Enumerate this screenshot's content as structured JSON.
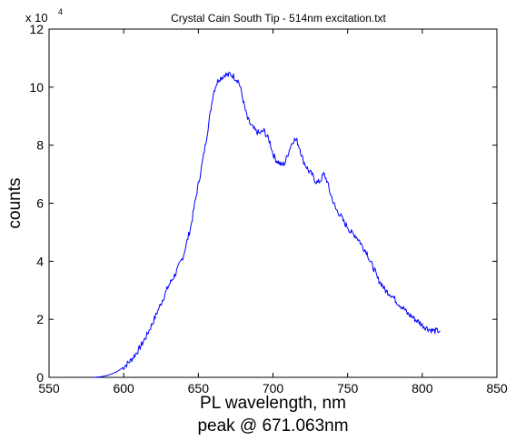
{
  "chart_data": {
    "type": "line",
    "title": "Crystal Cain South Tip - 514nm excitation.txt",
    "xlabel": "PL wavelength, nm",
    "xlabel_line2": "peak @ 671.063nm",
    "ylabel": "counts",
    "y_multiplier": {
      "base": "x 10",
      "exponent": "4"
    },
    "xlim": [
      550,
      850
    ],
    "ylim": [
      0,
      12
    ],
    "y_scale_factor": 10000,
    "xticks": [
      550,
      600,
      650,
      700,
      750,
      800,
      850
    ],
    "yticks": [
      0,
      2,
      4,
      6,
      8,
      10,
      12
    ],
    "grid": false,
    "line_color": "#0000ff",
    "series": [
      {
        "x": [
          580,
          585,
          590,
          595,
          600,
          605,
          610,
          615,
          620,
          625,
          630,
          635,
          640,
          645,
          648,
          652,
          655,
          658,
          660,
          662,
          664,
          666,
          668,
          670,
          671,
          673,
          675,
          677,
          679,
          681,
          683,
          685,
          688,
          691,
          694,
          696,
          698,
          700,
          702,
          704,
          706,
          708,
          710,
          712,
          714,
          716,
          718,
          720,
          722,
          724,
          726,
          728,
          730,
          732,
          734,
          736,
          738,
          740,
          742,
          745,
          748,
          750,
          752,
          755,
          758,
          760,
          763,
          765,
          768,
          770,
          773,
          775,
          778,
          780,
          783,
          785,
          788,
          790,
          793,
          795,
          798,
          800,
          803,
          805,
          808,
          810,
          812
        ],
        "y": [
          0.0,
          0.02,
          0.08,
          0.18,
          0.35,
          0.6,
          0.95,
          1.4,
          1.95,
          2.55,
          3.15,
          3.6,
          4.2,
          5.2,
          6.1,
          7.2,
          8.1,
          9.1,
          9.8,
          10.1,
          10.3,
          10.35,
          10.45,
          10.4,
          10.45,
          10.4,
          10.3,
          10.2,
          9.8,
          9.3,
          8.9,
          8.7,
          8.5,
          8.4,
          8.5,
          8.3,
          8.1,
          7.7,
          7.5,
          7.4,
          7.3,
          7.4,
          7.7,
          8.0,
          8.2,
          8.15,
          7.9,
          7.5,
          7.3,
          7.1,
          7.0,
          6.8,
          6.7,
          6.8,
          7.0,
          6.8,
          6.4,
          6.1,
          5.8,
          5.6,
          5.3,
          5.2,
          5.0,
          4.9,
          4.7,
          4.5,
          4.3,
          4.0,
          3.7,
          3.4,
          3.2,
          3.0,
          2.9,
          2.8,
          2.6,
          2.5,
          2.35,
          2.2,
          2.1,
          2.0,
          1.9,
          1.8,
          1.7,
          1.65,
          1.6,
          1.6,
          1.6
        ]
      }
    ]
  }
}
